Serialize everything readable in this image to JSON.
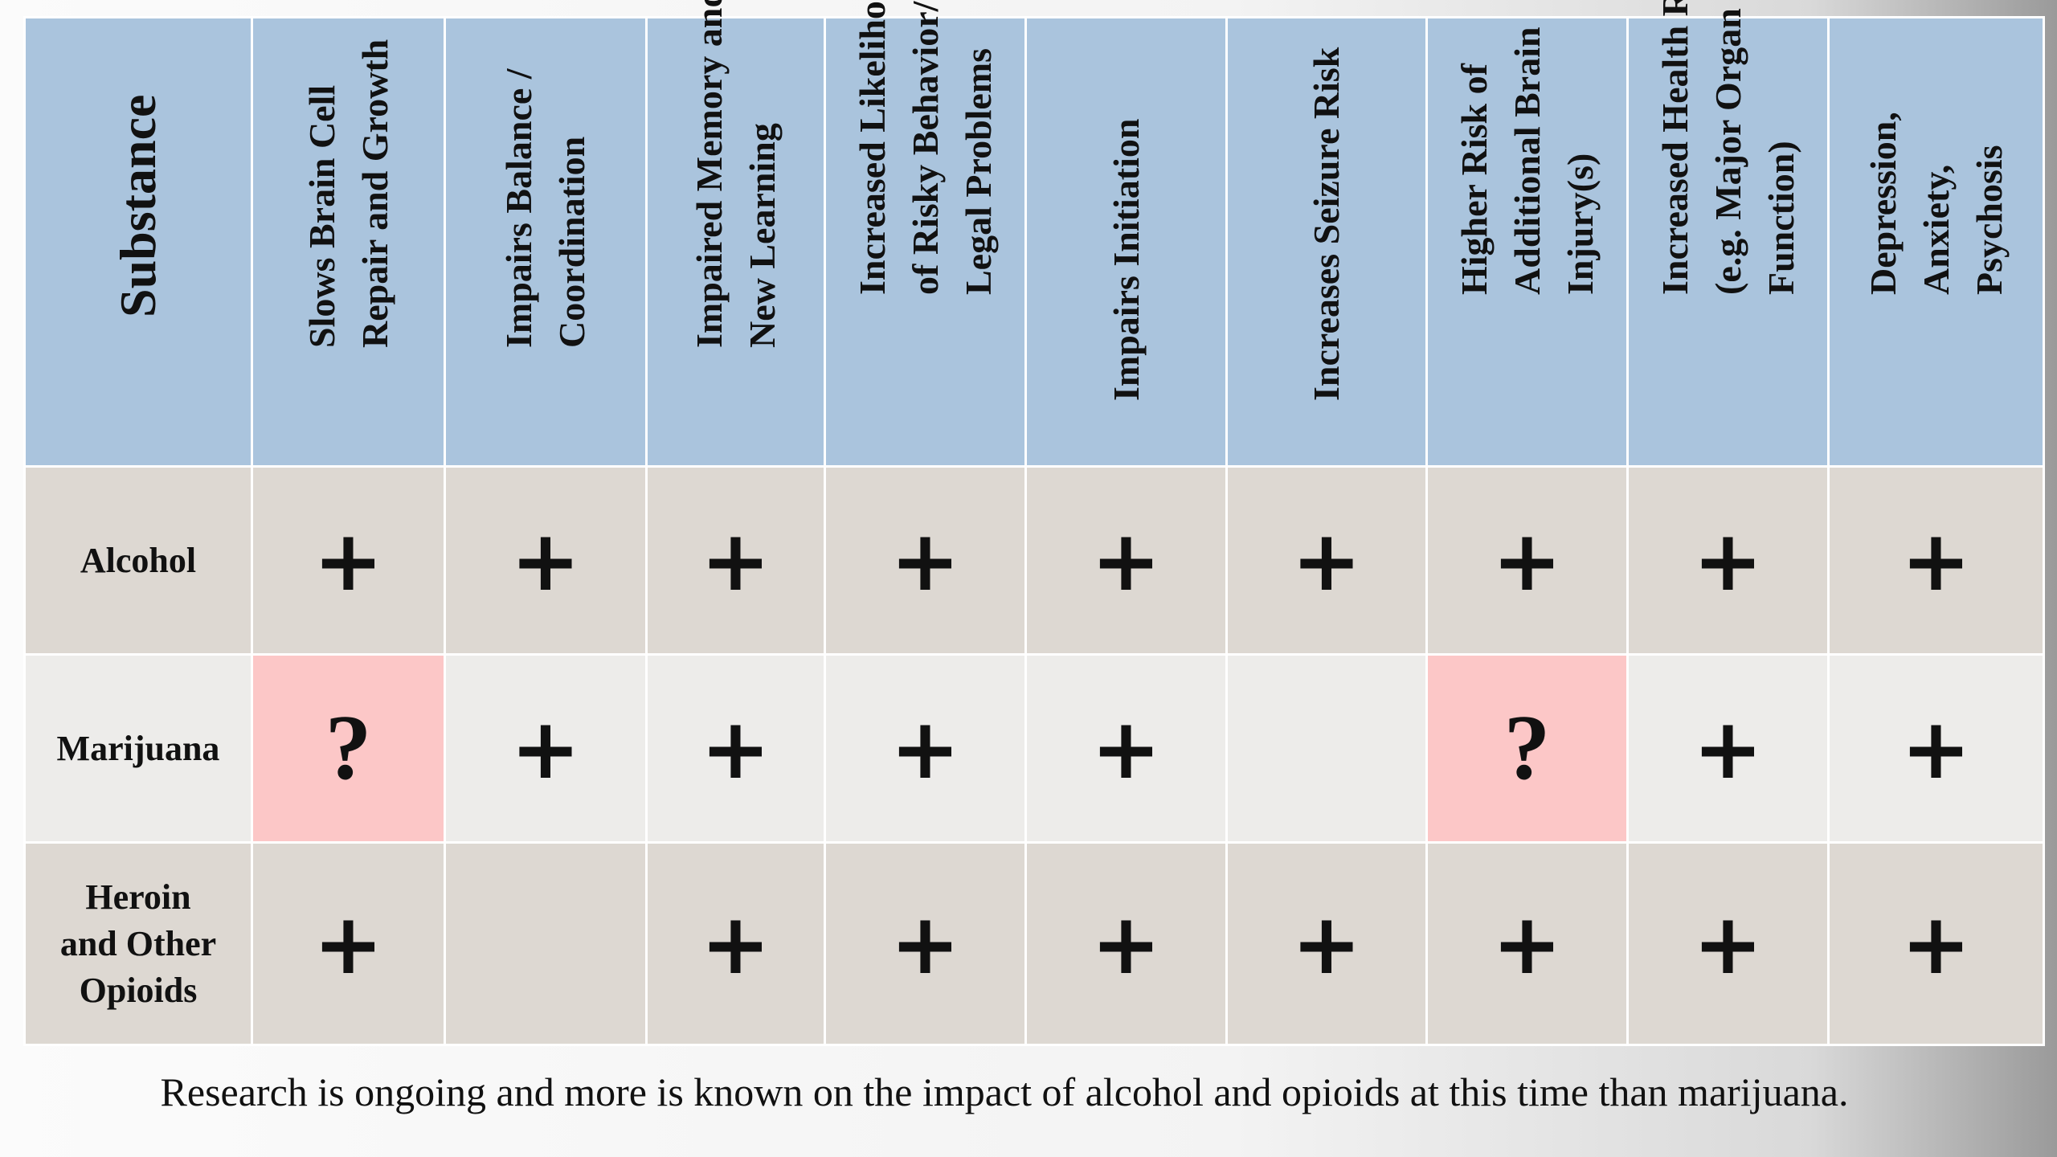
{
  "table": {
    "corner_header": "Substance",
    "columns": [
      [
        "Slows Brain Cell",
        "Repair and Growth"
      ],
      [
        "Impairs Balance /",
        "Coordination"
      ],
      [
        "Impaired Memory and",
        "New Learning"
      ],
      [
        "Increased Likelihood",
        "of Risky Behavior/",
        "Legal Problems"
      ],
      [
        "Impairs Initiation"
      ],
      [
        "Increases Seizure Risk"
      ],
      [
        "Higher Risk of",
        "Additional Brain",
        "Injury(s)"
      ],
      [
        "Increased Health Risks",
        "(e.g. Major Organ",
        "Function)"
      ],
      [
        "Depression,",
        "Anxiety,",
        "Psychosis"
      ]
    ],
    "rows": [
      {
        "substance": [
          "Alcohol"
        ],
        "cells": [
          "+",
          "+",
          "+",
          "+",
          "+",
          "+",
          "+",
          "+",
          "+"
        ]
      },
      {
        "substance": [
          "Marijuana"
        ],
        "cells": [
          "?",
          "+",
          "+",
          "+",
          "+",
          "",
          "?",
          "+",
          "+"
        ]
      },
      {
        "substance": [
          "Heroin",
          "and Other",
          "Opioids"
        ],
        "cells": [
          "+",
          "",
          "+",
          "+",
          "+",
          "+",
          "+",
          "+",
          "+"
        ]
      }
    ]
  },
  "caption": "Research is ongoing and more is known on the impact of alcohol and opioids at this time than marijuana.",
  "colors": {
    "header_bg": "#aac4dd",
    "row_dark_bg": "#ddd8d2",
    "row_light_bg": "#edecea",
    "unknown_bg": "#fcc7c7"
  }
}
